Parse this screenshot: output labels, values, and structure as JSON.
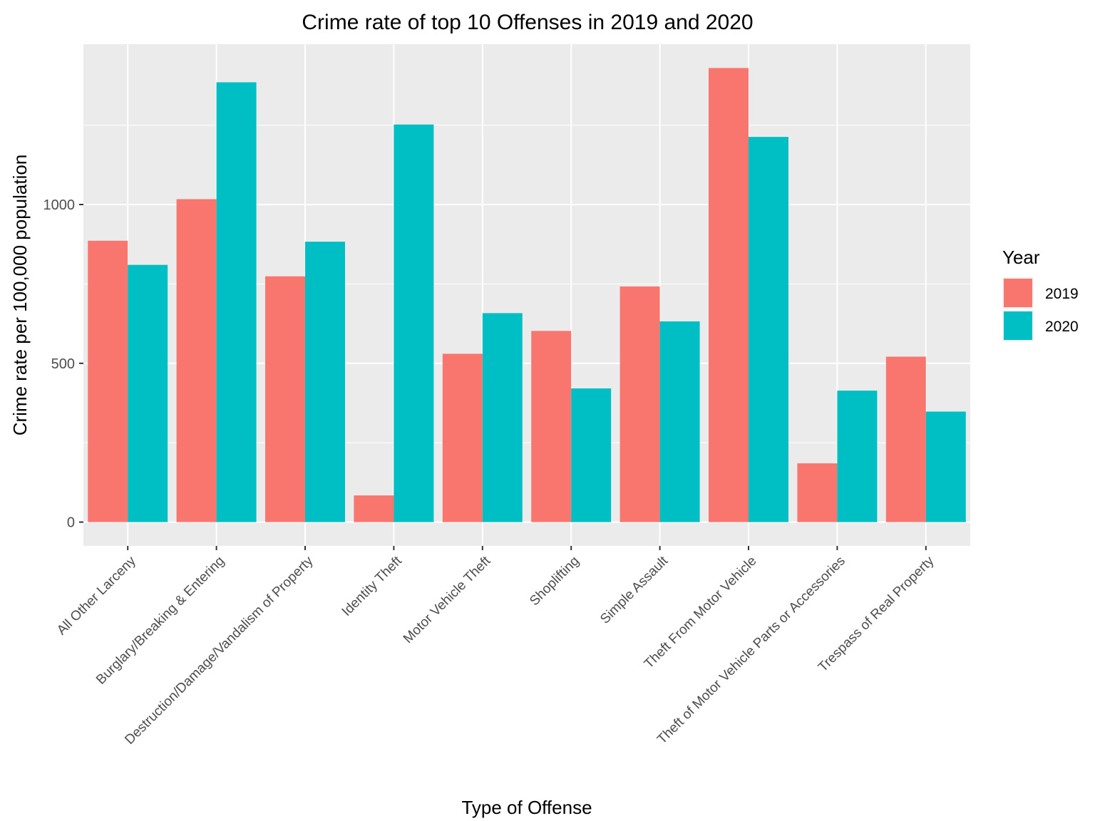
{
  "chart_data": {
    "type": "bar",
    "title": "Crime rate of top 10 Offenses in 2019 and 2020",
    "xlabel": "Type of Offense",
    "ylabel": "Crime rate per 100,000 population",
    "categories": [
      "All Other Larceny",
      "Burglary/Breaking & Entering",
      "Destruction/Damage/Vandalism of Property",
      "Identity Theft",
      "Motor Vehicle Theft",
      "Shoplifting",
      "Simple Assault",
      "Theft From Motor Vehicle",
      "Theft of Motor Vehicle Parts or Accessories",
      "Trespass of Real Property"
    ],
    "series": [
      {
        "name": "2019",
        "color": "#F8766D",
        "values": [
          886,
          1017,
          774,
          84,
          530,
          602,
          742,
          1430,
          185,
          521
        ]
      },
      {
        "name": "2020",
        "color": "#00BFC4",
        "values": [
          810,
          1385,
          883,
          1252,
          658,
          421,
          632,
          1213,
          414,
          348
        ]
      }
    ],
    "ylim": [
      -75,
      1505
    ],
    "yticks": [
      0,
      500,
      1000
    ],
    "grid": true,
    "legend": {
      "title": "Year",
      "position": "right"
    },
    "panel_color": "#EBEBEB"
  }
}
